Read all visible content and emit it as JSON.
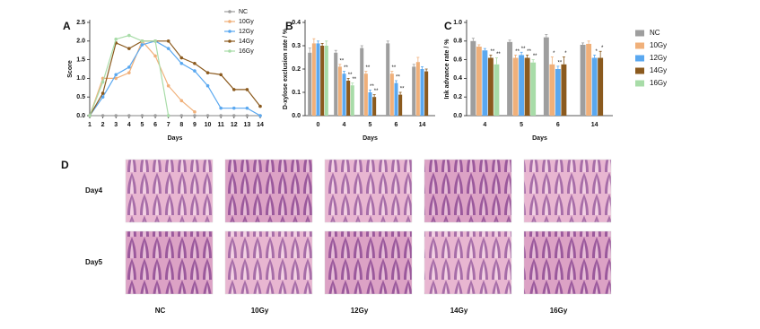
{
  "chart_data": [
    {
      "type": "line",
      "label": "A",
      "xlabel": "Days",
      "ylabel": "Score",
      "x": [
        1,
        2,
        3,
        4,
        5,
        6,
        7,
        8,
        9,
        10,
        11,
        12,
        13,
        14
      ],
      "xlim": [
        1,
        14
      ],
      "xticks": [
        1,
        2,
        3,
        4,
        5,
        6,
        7,
        8,
        9,
        10,
        11,
        12,
        13,
        14
      ],
      "ylim": [
        0,
        2.5
      ],
      "yticks": [
        {
          "value": 0,
          "label": "0.0"
        },
        0.5,
        {
          "value": 1,
          "label": "1.0"
        },
        1.5,
        {
          "value": 2,
          "label": "2.0"
        },
        2.5
      ],
      "legend": "upper right",
      "series": [
        {
          "name": "NC",
          "color": "#9e9e9e",
          "values": [
            0,
            0,
            0,
            0,
            0,
            0,
            0,
            0,
            0,
            0,
            0,
            0,
            0,
            0
          ]
        },
        {
          "name": "10Gy",
          "color": "#f0b07a",
          "values": [
            0,
            1.0,
            1.0,
            1.15,
            2.0,
            1.6,
            0.8,
            0.4,
            0.1,
            null,
            null,
            null,
            null,
            null
          ]
        },
        {
          "name": "12Gy",
          "color": "#5aa8f0",
          "values": [
            0,
            0.5,
            1.1,
            1.3,
            1.9,
            2.0,
            1.8,
            1.4,
            1.2,
            0.8,
            0.2,
            0.2,
            0.2,
            0
          ]
        },
        {
          "name": "14Gy",
          "color": "#8b5a1e",
          "values": [
            0,
            0.6,
            1.95,
            1.8,
            2.0,
            2.0,
            2.0,
            1.55,
            1.4,
            1.15,
            1.1,
            0.7,
            0.7,
            0.25
          ]
        },
        {
          "name": "16Gy",
          "color": "#a8dca8",
          "values": [
            0,
            0.9,
            2.05,
            2.15,
            2.0,
            2.0,
            0,
            null,
            null,
            null,
            null,
            null,
            null,
            null
          ]
        }
      ]
    },
    {
      "type": "bar",
      "label": "B",
      "xlabel": "Days",
      "ylabel": "D-xylose exclusion rate / %",
      "categories": [
        "0",
        "4",
        "5",
        "6",
        "14"
      ],
      "ylim": [
        0,
        0.4
      ],
      "yticks": [
        {
          "value": 0,
          "label": "0.0"
        },
        0.1,
        0.2,
        0.3,
        0.4
      ],
      "legend": "none",
      "series": [
        {
          "name": "NC",
          "color": "#9e9e9e",
          "values": [
            0.27,
            0.27,
            0.29,
            0.31,
            0.21
          ],
          "errors": [
            0.02,
            0.01,
            0.01,
            0.01,
            0.01
          ],
          "sig": [
            null,
            null,
            null,
            null,
            null
          ]
        },
        {
          "name": "10Gy",
          "color": "#f0b07a",
          "values": [
            0.31,
            0.21,
            0.18,
            0.18,
            0.23
          ],
          "errors": [
            0.02,
            0.01,
            0.01,
            0.01,
            0.02
          ],
          "sig": [
            null,
            "**",
            "**",
            "**",
            null
          ]
        },
        {
          "name": "12Gy",
          "color": "#5aa8f0",
          "values": [
            0.31,
            0.18,
            0.1,
            0.14,
            0.2
          ],
          "errors": [
            0.01,
            0.01,
            0.01,
            0.01,
            0.01
          ],
          "sig": [
            null,
            "**",
            "**",
            "**",
            null
          ]
        },
        {
          "name": "14Gy",
          "color": "#8b5a1e",
          "values": [
            0.3,
            0.15,
            0.08,
            0.09,
            0.19
          ],
          "errors": [
            0.01,
            0.01,
            0.01,
            0.01,
            0.01
          ],
          "sig": [
            null,
            "**",
            "**",
            "**",
            null
          ]
        },
        {
          "name": "16Gy",
          "color": "#a8dca8",
          "values": [
            0.3,
            0.13,
            null,
            null,
            null
          ],
          "errors": [
            0.02,
            0.01,
            null,
            null,
            null
          ],
          "sig": [
            null,
            "**",
            null,
            null,
            null
          ]
        }
      ]
    },
    {
      "type": "bar",
      "label": "C",
      "xlabel": "Days",
      "ylabel": "Ink advance rate / %",
      "categories": [
        "4",
        "5",
        "6",
        "14"
      ],
      "ylim": [
        0,
        1.0
      ],
      "yticks": [
        {
          "value": 0,
          "label": "0.0"
        },
        0.2,
        0.4,
        0.6,
        0.8,
        {
          "value": 1,
          "label": "1.0"
        }
      ],
      "legend": "right",
      "series": [
        {
          "name": "NC",
          "color": "#9e9e9e",
          "values": [
            0.8,
            0.79,
            0.84,
            0.76
          ],
          "errors": [
            0.03,
            0.02,
            0.03,
            0.02
          ],
          "sig": [
            null,
            null,
            null,
            null
          ]
        },
        {
          "name": "10Gy",
          "color": "#f0b07a",
          "values": [
            0.74,
            0.62,
            0.55,
            0.77
          ],
          "errors": [
            0.02,
            0.03,
            0.08,
            0.03
          ],
          "sig": [
            null,
            "**",
            "*",
            null
          ]
        },
        {
          "name": "12Gy",
          "color": "#5aa8f0",
          "values": [
            0.7,
            0.65,
            0.5,
            0.62
          ],
          "errors": [
            0.02,
            0.03,
            0.03,
            0.03
          ],
          "sig": [
            null,
            "**",
            "**",
            "*"
          ]
        },
        {
          "name": "14Gy",
          "color": "#8b5a1e",
          "values": [
            0.62,
            0.62,
            0.55,
            0.62
          ],
          "errors": [
            0.03,
            0.03,
            0.08,
            0.07
          ],
          "sig": [
            "**",
            "**",
            "*",
            "*"
          ]
        },
        {
          "name": "16Gy",
          "color": "#a8dca8",
          "values": [
            0.55,
            0.57,
            null,
            null
          ],
          "errors": [
            0.07,
            0.03,
            null,
            null
          ],
          "sig": [
            "**",
            "**",
            null,
            null
          ]
        }
      ]
    }
  ],
  "panel_d": {
    "label": "D",
    "rows": [
      "Day4",
      "Day5"
    ],
    "columns": [
      "NC",
      "10Gy",
      "12Gy",
      "14Gy",
      "16Gy"
    ]
  }
}
